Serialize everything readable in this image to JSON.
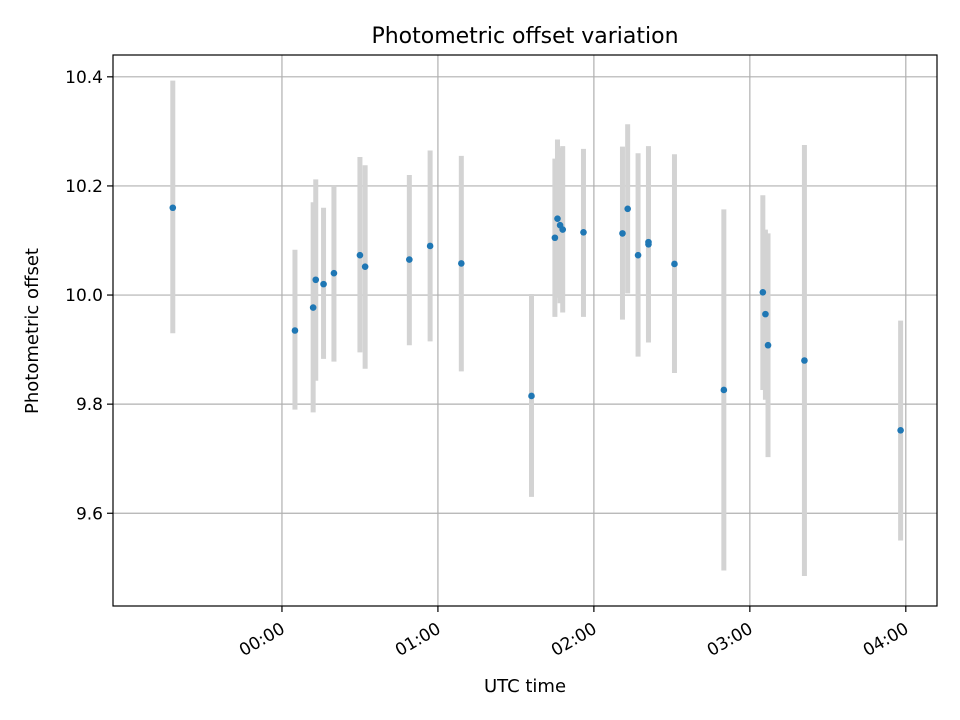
{
  "chart_data": {
    "type": "scatter",
    "title": "Photometric offset variation",
    "xlabel": "UTC time",
    "ylabel": "Photometric offset",
    "x_unit": "UTC hours",
    "xlim": [
      "-01:05",
      "04:12"
    ],
    "ylim": [
      9.43,
      10.44
    ],
    "xticks": [
      {
        "label": "00:00",
        "value": "00:00"
      },
      {
        "label": "01:00",
        "value": "01:00"
      },
      {
        "label": "02:00",
        "value": "02:00"
      },
      {
        "label": "03:00",
        "value": "03:00"
      },
      {
        "label": "04:00",
        "value": "04:00"
      }
    ],
    "yticks": [
      {
        "label": "9.6",
        "value": 9.6
      },
      {
        "label": "9.8",
        "value": 9.8
      },
      {
        "label": "10.0",
        "value": 10.0
      },
      {
        "label": "10.2",
        "value": 10.2
      },
      {
        "label": "10.4",
        "value": 10.4
      }
    ],
    "grid": true,
    "colors": {
      "point": "#1f77b4",
      "errorbar": "#d3d3d3",
      "grid": "#b0b0b0"
    },
    "points": [
      {
        "x": "-00:42",
        "y": 10.16,
        "lo": 9.93,
        "hi": 10.393
      },
      {
        "x": "00:05",
        "y": 9.935,
        "lo": 9.79,
        "hi": 10.083
      },
      {
        "x": "00:12",
        "y": 9.977,
        "lo": 9.785,
        "hi": 10.17
      },
      {
        "x": "00:13",
        "y": 10.028,
        "lo": 9.843,
        "hi": 10.212
      },
      {
        "x": "00:16",
        "y": 10.02,
        "lo": 9.883,
        "hi": 10.16
      },
      {
        "x": "00:20",
        "y": 10.04,
        "lo": 9.878,
        "hi": 10.2
      },
      {
        "x": "00:30",
        "y": 10.073,
        "lo": 9.895,
        "hi": 10.253
      },
      {
        "x": "00:32",
        "y": 10.052,
        "lo": 9.865,
        "hi": 10.238
      },
      {
        "x": "00:49",
        "y": 10.065,
        "lo": 9.908,
        "hi": 10.22
      },
      {
        "x": "00:57",
        "y": 10.09,
        "lo": 9.915,
        "hi": 10.265
      },
      {
        "x": "01:09",
        "y": 10.058,
        "lo": 9.86,
        "hi": 10.255
      },
      {
        "x": "01:36",
        "y": 9.815,
        "lo": 9.63,
        "hi": 10.002
      },
      {
        "x": "01:45",
        "y": 10.105,
        "lo": 9.96,
        "hi": 10.25
      },
      {
        "x": "01:46",
        "y": 10.14,
        "lo": 9.995,
        "hi": 10.285
      },
      {
        "x": "01:47",
        "y": 10.128,
        "lo": 9.985,
        "hi": 10.27
      },
      {
        "x": "01:48",
        "y": 10.12,
        "lo": 9.968,
        "hi": 10.273
      },
      {
        "x": "01:56",
        "y": 10.115,
        "lo": 9.96,
        "hi": 10.268
      },
      {
        "x": "02:11",
        "y": 10.113,
        "lo": 9.955,
        "hi": 10.272
      },
      {
        "x": "02:13",
        "y": 10.158,
        "lo": 10.003,
        "hi": 10.313
      },
      {
        "x": "02:17",
        "y": 10.073,
        "lo": 9.887,
        "hi": 10.26
      },
      {
        "x": "02:21",
        "y": 10.093,
        "lo": 9.913,
        "hi": 10.27
      },
      {
        "x": "02:21",
        "y": 10.097,
        "lo": 9.92,
        "hi": 10.273
      },
      {
        "x": "02:31",
        "y": 10.057,
        "lo": 9.857,
        "hi": 10.258
      },
      {
        "x": "02:50",
        "y": 9.826,
        "lo": 9.495,
        "hi": 10.157
      },
      {
        "x": "03:05",
        "y": 10.005,
        "lo": 9.826,
        "hi": 10.183
      },
      {
        "x": "03:06",
        "y": 9.965,
        "lo": 9.808,
        "hi": 10.12
      },
      {
        "x": "03:07",
        "y": 9.908,
        "lo": 9.703,
        "hi": 10.113
      },
      {
        "x": "03:21",
        "y": 9.88,
        "lo": 9.485,
        "hi": 10.275
      },
      {
        "x": "03:58",
        "y": 9.752,
        "lo": 9.55,
        "hi": 9.953
      }
    ]
  }
}
